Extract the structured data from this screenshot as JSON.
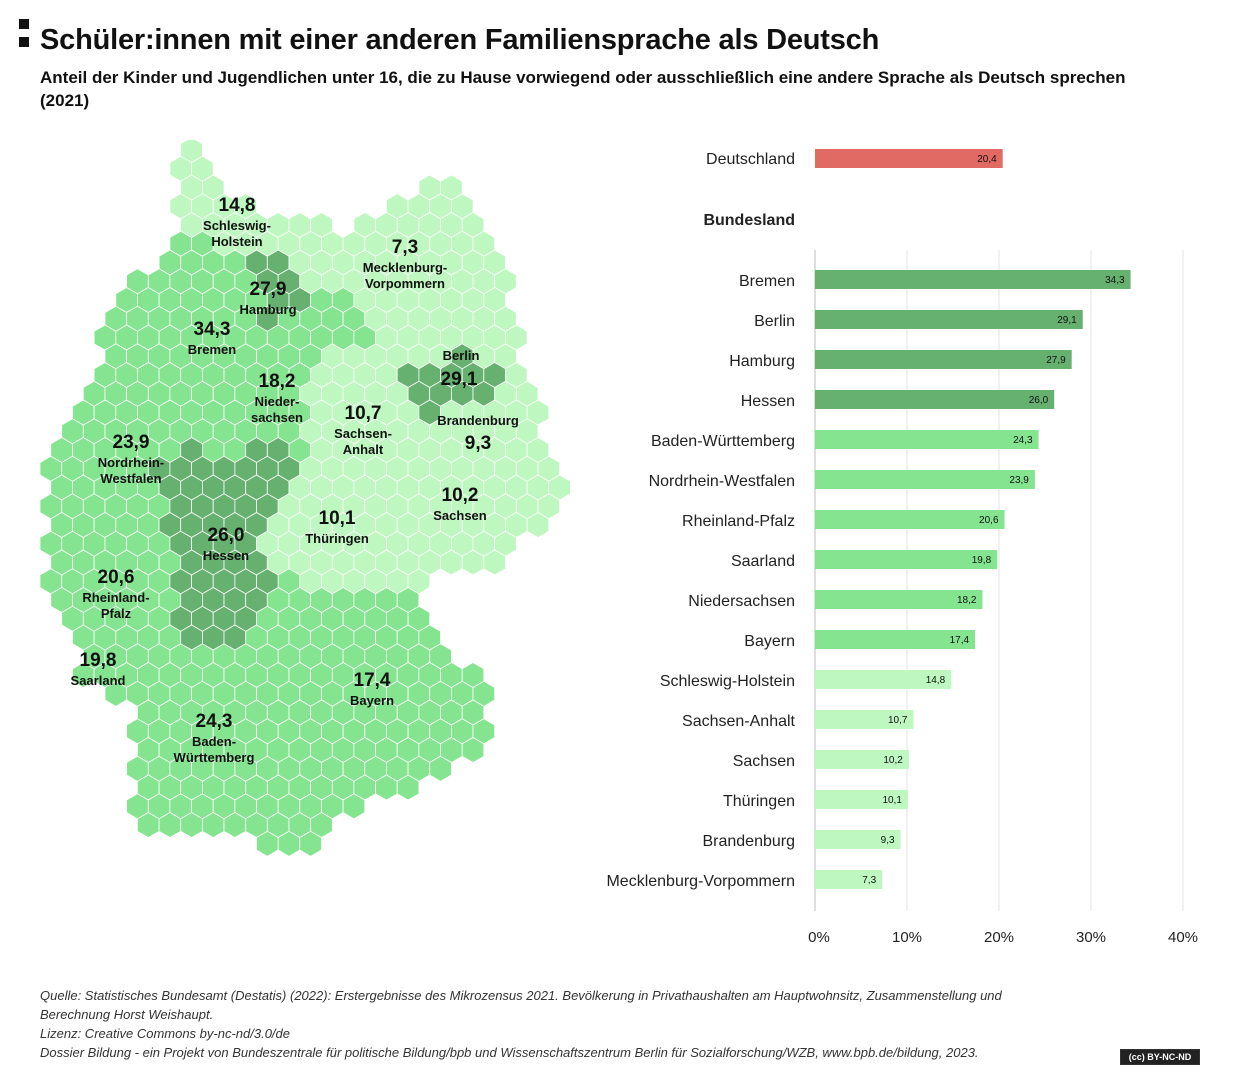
{
  "title": "Schüler:innen mit einer anderen Familiensprache als Deutsch",
  "subtitle": "Anteil der Kinder und Jugendlichen unter 16, die zu Hause vorwiegend oder ausschließlich eine andere Sprache als Deutsch sprechen (2021)",
  "colors": {
    "dark_green": "#66b16f",
    "mid_green": "#84e48f",
    "light_green": "#bff7c0",
    "red": "#e26a64",
    "grid": "#e3e3e3"
  },
  "map": {
    "states": [
      {
        "id": "sh",
        "value": "14,8",
        "name": [
          "Schleswig-",
          "Holstein"
        ]
      },
      {
        "id": "mv",
        "value": "7,3",
        "name": [
          "Mecklenburg-",
          "Vorpommern"
        ]
      },
      {
        "id": "hh",
        "value": "27,9",
        "name": [
          "Hamburg"
        ]
      },
      {
        "id": "hb",
        "value": "34,3",
        "name": [
          "Bremen"
        ]
      },
      {
        "id": "ni",
        "value": "18,2",
        "name": [
          "Nieder-",
          "sachsen"
        ]
      },
      {
        "id": "be",
        "value": "29,1",
        "name": [
          "Berlin"
        ]
      },
      {
        "id": "bb",
        "value": "9,3",
        "name": [
          "Brandenburg"
        ]
      },
      {
        "id": "st",
        "value": "10,7",
        "name": [
          "Sachsen-",
          "Anhalt"
        ]
      },
      {
        "id": "nw",
        "value": "23,9",
        "name": [
          "Nordrhein-",
          "Westfalen"
        ]
      },
      {
        "id": "sn",
        "value": "10,2",
        "name": [
          "Sachsen"
        ]
      },
      {
        "id": "he",
        "value": "26,0",
        "name": [
          "Hessen"
        ]
      },
      {
        "id": "th",
        "value": "10,1",
        "name": [
          "Thüringen"
        ]
      },
      {
        "id": "rp",
        "value": "20,6",
        "name": [
          "Rheinland-",
          "Pfalz"
        ]
      },
      {
        "id": "sl",
        "value": "19,8",
        "name": [
          "Saarland"
        ]
      },
      {
        "id": "by",
        "value": "17,4",
        "name": [
          "Bayern"
        ]
      },
      {
        "id": "bw",
        "value": "24,3",
        "name": [
          "Baden-",
          "Württemberg"
        ]
      }
    ]
  },
  "chart_data": {
    "type": "bar",
    "orientation": "horizontal",
    "total_label": "Deutschland",
    "total_value": 20.4,
    "group_heading": "Bundesland",
    "categories": [
      "Bremen",
      "Berlin",
      "Hamburg",
      "Hessen",
      "Baden-Württemberg",
      "Nordrhein-Westfalen",
      "Rheinland-Pfalz",
      "Saarland",
      "Niedersachsen",
      "Bayern",
      "Schleswig-Holstein",
      "Sachsen-Anhalt",
      "Sachsen",
      "Thüringen",
      "Brandenburg",
      "Mecklenburg-Vorpommern"
    ],
    "values": [
      34.3,
      29.1,
      27.9,
      26.0,
      24.3,
      23.9,
      20.6,
      19.8,
      18.2,
      17.4,
      14.8,
      10.7,
      10.2,
      10.1,
      9.3,
      7.3
    ],
    "value_labels": [
      "34,3",
      "29,1",
      "27,9",
      "26,0",
      "24,3",
      "23,9",
      "20,6",
      "19,8",
      "18,2",
      "17,4",
      "14,8",
      "10,7",
      "10,2",
      "10,1",
      "9,3",
      "7,3"
    ],
    "total_value_label": "20,4",
    "xlim": [
      0,
      40
    ],
    "x_ticks": [
      "0%",
      "10%",
      "20%",
      "30%",
      "40%"
    ],
    "grid": true,
    "color_classes": [
      "dark",
      "dark",
      "dark",
      "dark",
      "mid",
      "mid",
      "mid",
      "mid",
      "mid",
      "mid",
      "light",
      "light",
      "light",
      "light",
      "light",
      "light"
    ]
  },
  "footer": {
    "source": "Quelle:  Statistisches Bundesamt (Destatis) (2022): Erstergebnisse des Mikrozensus 2021. Bevölkerung in Privathaushalten am Hauptwohnsitz, Zusammenstellung und",
    "source2": "Berechnung Horst Weishaupt.",
    "license": "Lizenz: Creative Commons by-nc-nd/3.0/de",
    "dossier": "Dossier Bildung - ein Projekt von Bundeszentrale für politische Bildung/bpb und Wissenschaftszentrum Berlin für Sozialforschung/WZB, www.bpb.de/bildung, 2023.",
    "badge": "(cc) BY-NC-ND"
  }
}
